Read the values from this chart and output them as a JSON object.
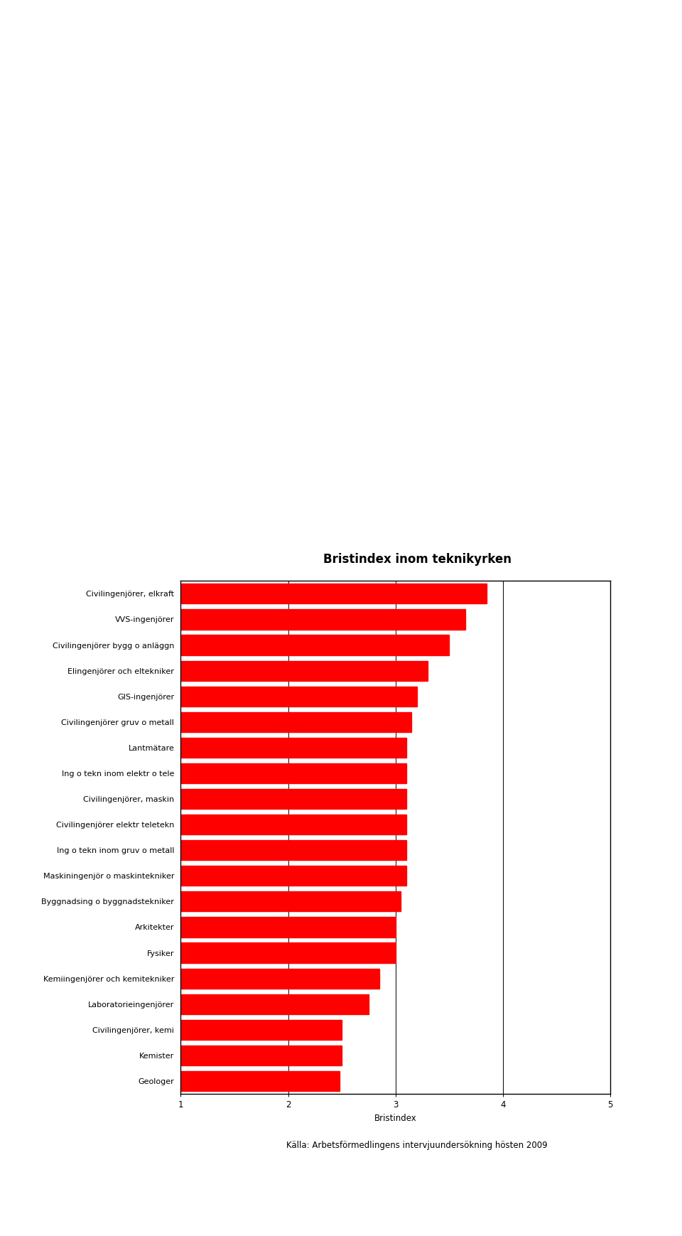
{
  "title": "Bristindex inom teknikyrken",
  "categories": [
    "Civilingenjörer, elkraft",
    "VVS-ingenjörer",
    "Civilingenjörer bygg o anläggn",
    "Elingenjörer och eltekniker",
    "GIS-ingenjörer",
    "Civilingenjörer gruv o metall",
    "Lantmätare",
    "Ing o tekn inom elektr o tele",
    "Civilingenjörer, maskin",
    "Civilingenjörer elektr teletekn",
    "Ing o tekn inom gruv o metall",
    "Maskiningenjör o maskintekniker",
    "Byggnadsing o byggnadstekniker",
    "Arkitekter",
    "Fysiker",
    "Kemiingenjörer och kemitekniker",
    "Laboratorieingenjörer",
    "Civilingenjörer, kemi",
    "Kemister",
    "Geologer"
  ],
  "values": [
    3.85,
    3.65,
    3.5,
    3.3,
    3.2,
    3.15,
    3.1,
    3.1,
    3.1,
    3.1,
    3.1,
    3.1,
    3.05,
    3.0,
    3.0,
    2.85,
    2.75,
    2.5,
    2.5,
    2.48
  ],
  "bar_color": "#ff0000",
  "xlim_min": 1,
  "xlim_max": 5,
  "xticks": [
    1,
    2,
    3,
    4,
    5
  ],
  "xlabel": "Bristindex",
  "caption": "Källa: Arbetsförmedlingens intervjuundersökning hösten 2009",
  "bar_height": 0.78,
  "title_fontsize": 12,
  "label_fontsize": 8,
  "tick_fontsize": 8.5,
  "caption_fontsize": 8.5
}
